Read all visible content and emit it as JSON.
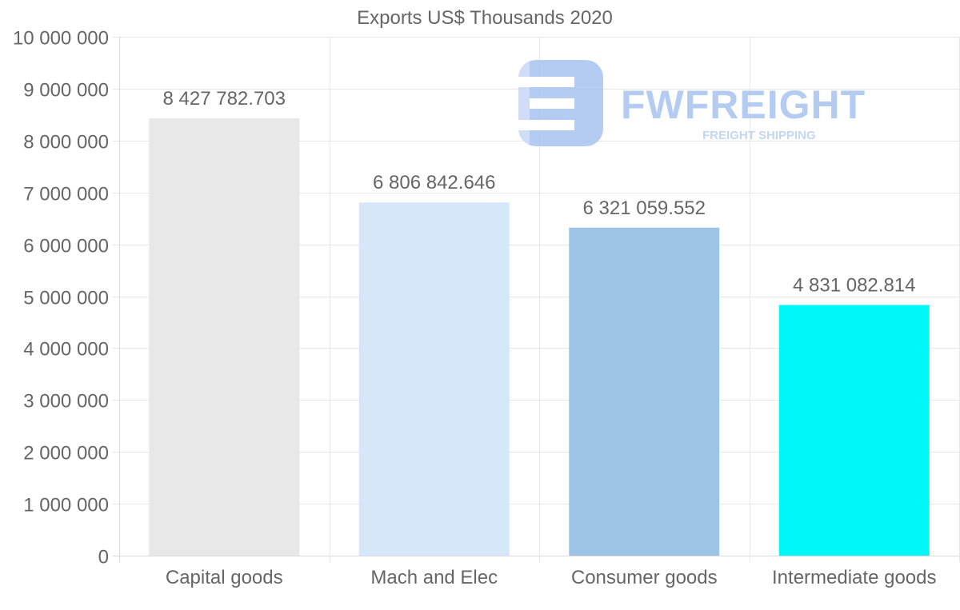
{
  "chart_data": {
    "type": "bar",
    "title": "Exports US$ Thousands 2020",
    "categories": [
      "Capital goods",
      "Mach and Elec",
      "Consumer goods",
      "Intermediate goods"
    ],
    "values": [
      8427782.703,
      6806842.646,
      6321059.552,
      4831082.814
    ],
    "value_labels": [
      "8 427 782.703",
      "6 806 842.646",
      "6 321 059.552",
      "4 831 082.814"
    ],
    "colors": [
      "#e8e8e8",
      "#d6e7f9",
      "#9dc4e6",
      "#00f7f8"
    ],
    "ylim": [
      0,
      10000000
    ],
    "yticks": [
      0,
      1000000,
      2000000,
      3000000,
      4000000,
      5000000,
      6000000,
      7000000,
      8000000,
      9000000,
      10000000
    ],
    "ytick_labels": [
      "0",
      "1 000 000",
      "2 000 000",
      "3 000 000",
      "4 000 000",
      "5 000 000",
      "6 000 000",
      "7 000 000",
      "8 000 000",
      "9 000 000",
      "10 000 000"
    ],
    "xlabel": "",
    "ylabel": "",
    "grid": true
  },
  "watermark": {
    "brand": "FWFREIGHT",
    "tagline": "FREIGHT SHIPPING",
    "color": "#a9c4f0"
  }
}
